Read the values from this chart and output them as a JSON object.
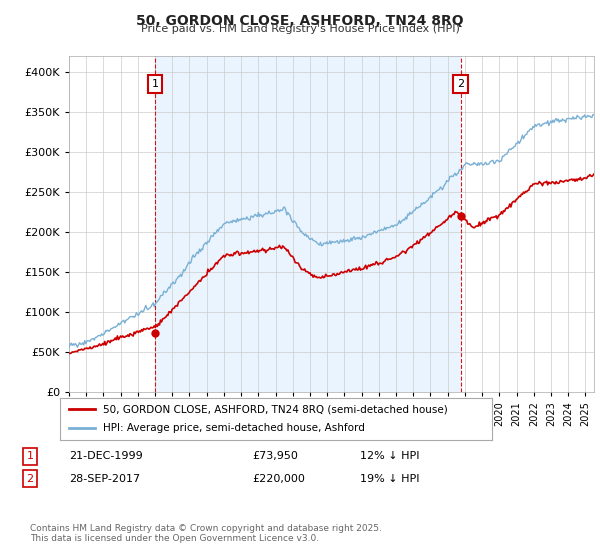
{
  "title": "50, GORDON CLOSE, ASHFORD, TN24 8RQ",
  "subtitle": "Price paid vs. HM Land Registry's House Price Index (HPI)",
  "legend_line1": "50, GORDON CLOSE, ASHFORD, TN24 8RQ (semi-detached house)",
  "legend_line2": "HPI: Average price, semi-detached house, Ashford",
  "annotation1_label": "1",
  "annotation1_date": "21-DEC-1999",
  "annotation1_price": "£73,950",
  "annotation1_hpi": "12% ↓ HPI",
  "annotation1_year": 2000.0,
  "annotation1_value": 73950,
  "annotation2_label": "2",
  "annotation2_date": "28-SEP-2017",
  "annotation2_price": "£220,000",
  "annotation2_hpi": "19% ↓ HPI",
  "annotation2_year": 2017.75,
  "annotation2_value": 220000,
  "price_color": "#cc0000",
  "hpi_color": "#7ab0d4",
  "annotation_color": "#cc0000",
  "shading_color": "#ddeeff",
  "ylim": [
    0,
    420000
  ],
  "xlim_start": 1995.0,
  "xlim_end": 2025.5,
  "footer": "Contains HM Land Registry data © Crown copyright and database right 2025.\nThis data is licensed under the Open Government Licence v3.0.",
  "background_color": "#ffffff",
  "grid_color": "#cccccc"
}
